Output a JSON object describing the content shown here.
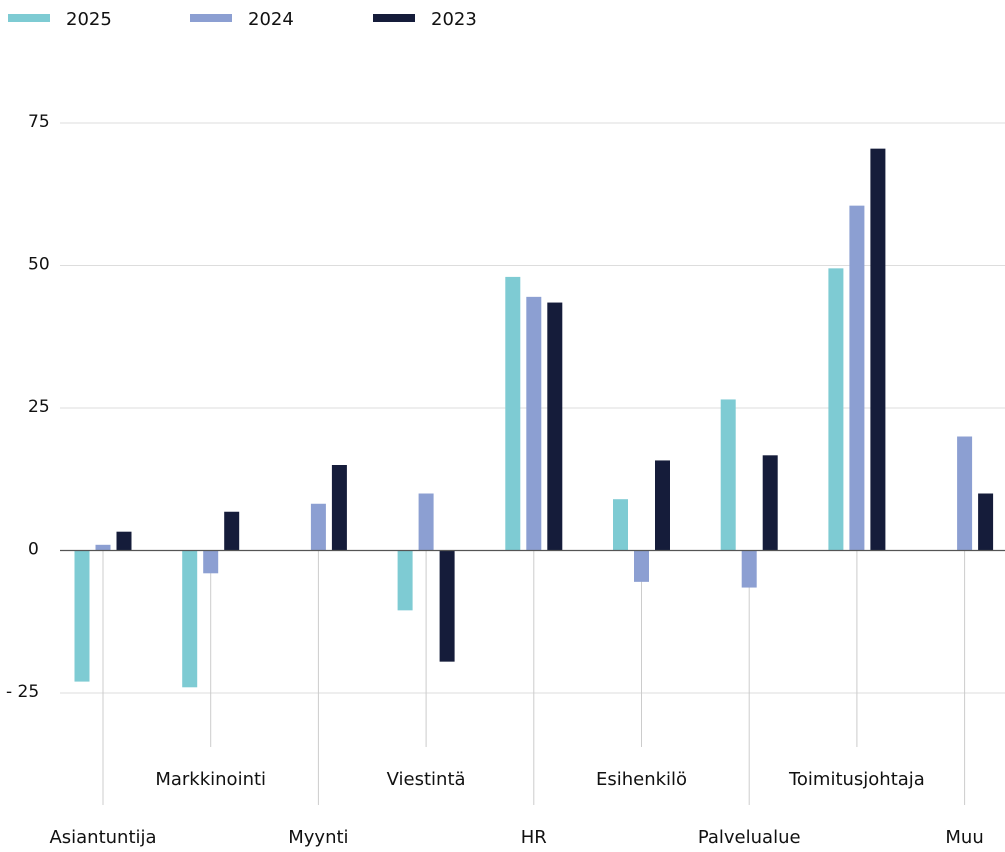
{
  "chart_data": {
    "type": "bar",
    "categories": [
      "Asiantuntija",
      "Markkinointi",
      "Myynti",
      "Viestintä",
      "HR",
      "Esihenkilö",
      "Palvelualue",
      "Toimitusjohtaja",
      "Muu"
    ],
    "series": [
      {
        "name": "2025",
        "color": "#7ecbd3",
        "values": [
          -23,
          -24,
          null,
          -10.5,
          48,
          9,
          26.5,
          49.5,
          null
        ]
      },
      {
        "name": "2024",
        "color": "#8c9fd2",
        "values": [
          1,
          -4,
          8.2,
          10,
          44.5,
          -5.5,
          -6.5,
          60.5,
          20
        ]
      },
      {
        "name": "2023",
        "color": "#151c3a",
        "values": [
          3.3,
          6.8,
          15,
          -19.5,
          43.5,
          15.8,
          16.7,
          70.5,
          10
        ]
      }
    ],
    "yticks": [
      {
        "value": 75,
        "label": "75"
      },
      {
        "value": 50,
        "label": "50"
      },
      {
        "value": 25,
        "label": "25"
      },
      {
        "value": 0,
        "label": "0"
      },
      {
        "value": -25,
        "label": "- 25"
      }
    ],
    "ylim": [
      -25,
      75
    ],
    "grid": true,
    "legend_position": "top-left"
  }
}
